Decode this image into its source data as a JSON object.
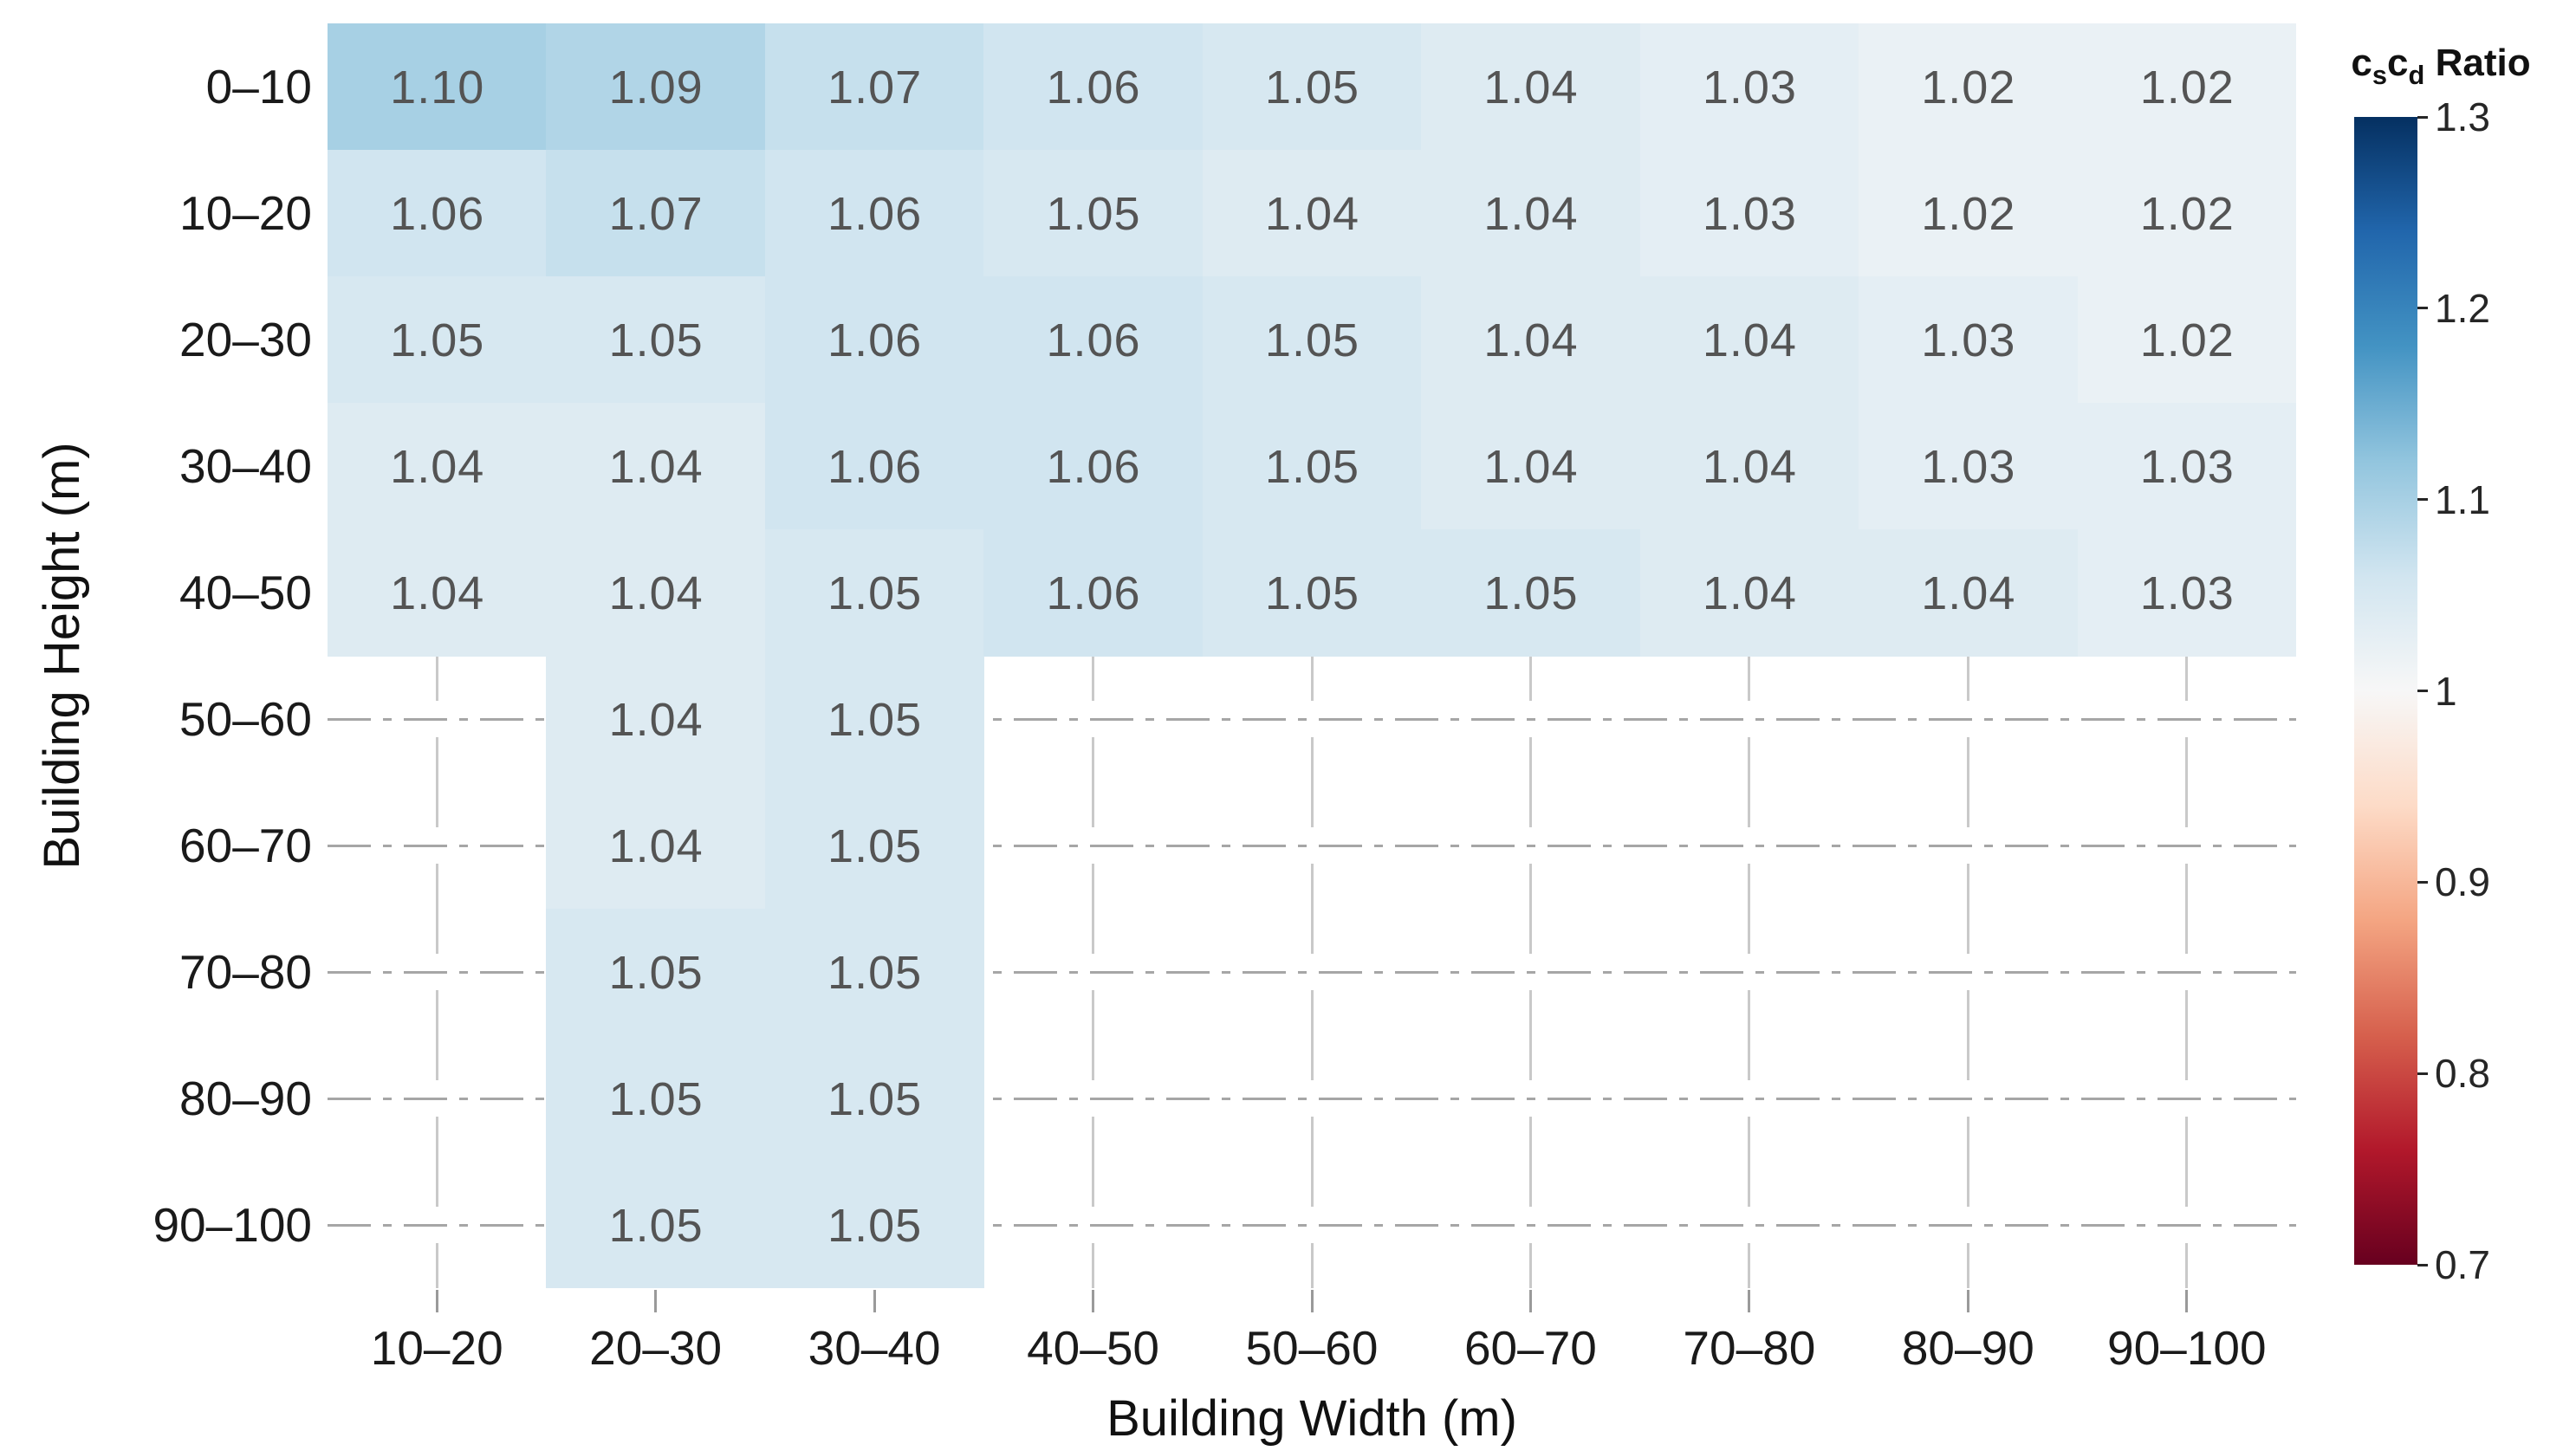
{
  "chart_data": {
    "type": "heatmap",
    "xlabel": "Building Width (m)",
    "ylabel": "Building Height (m)",
    "x_categories": [
      "10–20",
      "20–30",
      "30–40",
      "40–50",
      "50–60",
      "60–70",
      "70–80",
      "80–90",
      "90–100"
    ],
    "y_categories": [
      "0–10",
      "10–20",
      "20–30",
      "30–40",
      "40–50",
      "50–60",
      "60–70",
      "70–80",
      "80–90",
      "90–100"
    ],
    "values": [
      [
        1.1,
        1.09,
        1.07,
        1.06,
        1.05,
        1.04,
        1.03,
        1.02,
        1.02
      ],
      [
        1.06,
        1.07,
        1.06,
        1.05,
        1.04,
        1.04,
        1.03,
        1.02,
        1.02
      ],
      [
        1.05,
        1.05,
        1.06,
        1.06,
        1.05,
        1.04,
        1.04,
        1.03,
        1.02
      ],
      [
        1.04,
        1.04,
        1.06,
        1.06,
        1.05,
        1.04,
        1.04,
        1.03,
        1.03
      ],
      [
        1.04,
        1.04,
        1.05,
        1.06,
        1.05,
        1.05,
        1.04,
        1.04,
        1.03
      ],
      [
        null,
        1.04,
        1.05,
        null,
        null,
        null,
        null,
        null,
        null
      ],
      [
        null,
        1.04,
        1.05,
        null,
        null,
        null,
        null,
        null,
        null
      ],
      [
        null,
        1.05,
        1.05,
        null,
        null,
        null,
        null,
        null,
        null
      ],
      [
        null,
        1.05,
        1.05,
        null,
        null,
        null,
        null,
        null,
        null
      ],
      [
        null,
        1.05,
        1.05,
        null,
        null,
        null,
        null,
        null,
        null
      ]
    ],
    "value_decimals": 2,
    "grid": {
      "shown": true,
      "horizontal_style": "dash-dot",
      "vertical_style": "long-dash"
    },
    "colorbar": {
      "title_html": "c<sub>s</sub>c<sub>d</sub> Ratio",
      "tick_labels": [
        "1.3",
        "1.2",
        "1.1",
        "1",
        "0.9",
        "0.8",
        "0.7"
      ],
      "range": [
        0.7,
        1.3
      ],
      "colorscale_name": "RdBu",
      "stops": [
        "#67001f",
        "#b2182b",
        "#d6604d",
        "#f4a582",
        "#fddbc7",
        "#f7f7f7",
        "#d1e5f0",
        "#92c5de",
        "#4393c3",
        "#2166ac",
        "#053061"
      ]
    },
    "cell_text_color": "#545454",
    "tick_text_color": "#1a1a1a"
  }
}
